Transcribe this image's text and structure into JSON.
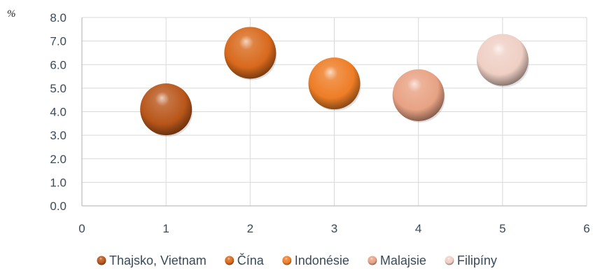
{
  "chart_data": {
    "type": "scatter",
    "title": "",
    "ylabel": "%",
    "xlabel": "",
    "xlim": [
      0,
      6
    ],
    "ylim": [
      0,
      8
    ],
    "x_ticks": [
      "0",
      "1",
      "2",
      "3",
      "4",
      "5",
      "6"
    ],
    "y_ticks": [
      "0.0",
      "1.0",
      "2.0",
      "3.0",
      "4.0",
      "5.0",
      "6.0",
      "7.0",
      "8.0"
    ],
    "grid": true,
    "legend_position": "bottom",
    "series": [
      {
        "name": "Thajsko, Vietnam",
        "x": 1,
        "y": 4.1,
        "color": "#b8561a"
      },
      {
        "name": "Čína",
        "x": 2,
        "y": 6.5,
        "color": "#d8691c"
      },
      {
        "name": "Indonésie",
        "x": 3,
        "y": 5.2,
        "color": "#ee7d26"
      },
      {
        "name": "Malajsie",
        "x": 4,
        "y": 4.7,
        "color": "#e8a284"
      },
      {
        "name": "Filipíny",
        "x": 5,
        "y": 6.2,
        "color": "#efcfc4"
      }
    ]
  }
}
